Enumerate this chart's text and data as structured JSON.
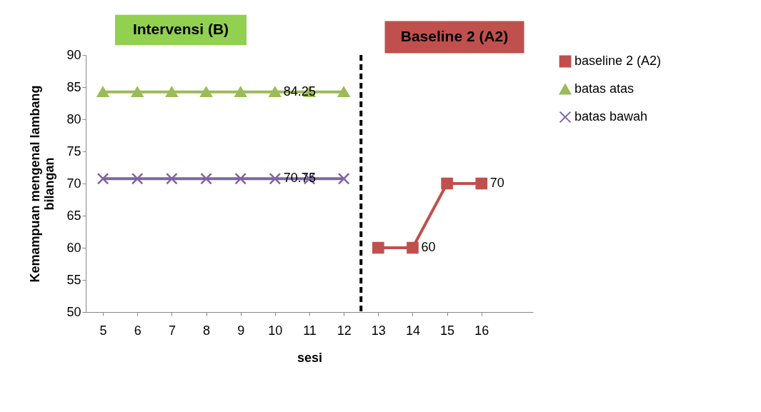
{
  "chart_data": {
    "type": "line",
    "xlabel": "sesi",
    "ylabel": "Kemampuan mengenal lambang bilangan",
    "xlim": [
      4.5,
      17.5
    ],
    "xticks": [
      5,
      6,
      7,
      8,
      9,
      10,
      11,
      12,
      13,
      14,
      15,
      16
    ],
    "ylim": [
      50,
      90
    ],
    "yticks": [
      50,
      55,
      60,
      65,
      70,
      75,
      80,
      85,
      90
    ],
    "grid": false,
    "legend": "right",
    "series": [
      {
        "name": "baseline 2 (A2)",
        "color": "#c0504d",
        "marker": "square",
        "x": [
          13,
          14,
          15,
          16
        ],
        "values": [
          60,
          60,
          70,
          70
        ],
        "value_labels": [
          null,
          "60",
          null,
          "70"
        ]
      },
      {
        "name": "batas atas",
        "color": "#9bbb59",
        "marker": "triangle",
        "x": [
          5,
          6,
          7,
          8,
          9,
          10,
          11,
          12
        ],
        "values": [
          84.25,
          84.25,
          84.25,
          84.25,
          84.25,
          84.25,
          84.25,
          84.25
        ],
        "value_labels": [
          null,
          null,
          null,
          null,
          null,
          "84.25",
          null,
          null
        ]
      },
      {
        "name": "batas bawah",
        "color": "#8064a2",
        "marker": "cross",
        "x": [
          5,
          6,
          7,
          8,
          9,
          10,
          11,
          12
        ],
        "values": [
          70.75,
          70.75,
          70.75,
          70.75,
          70.75,
          70.75,
          70.75,
          70.75
        ],
        "value_labels": [
          null,
          null,
          null,
          null,
          null,
          "70.75",
          null,
          null
        ]
      }
    ],
    "ref_lines": [
      {
        "axis": "x",
        "value": 12.5,
        "color": "#000000",
        "line_style": "dashed"
      }
    ],
    "annotations": [
      "Intervensi (B)",
      "Baseline 2 (A2)"
    ]
  }
}
